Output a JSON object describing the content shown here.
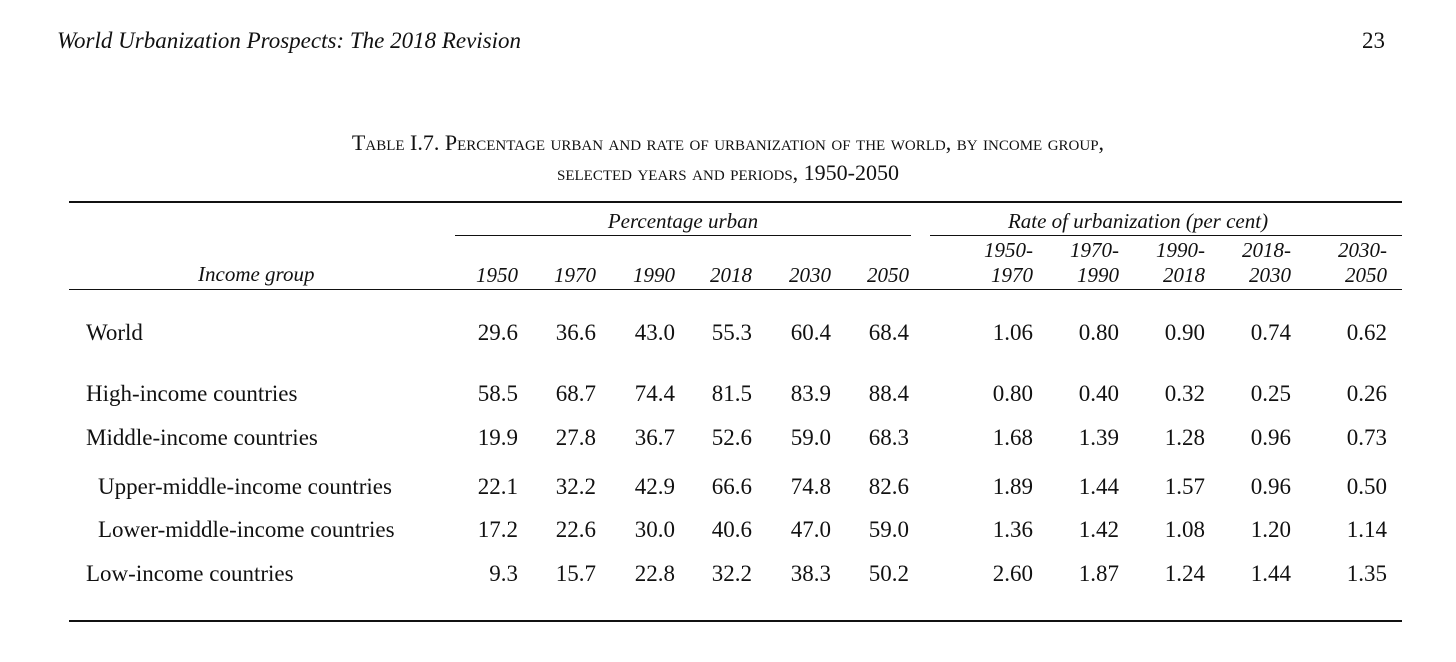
{
  "header": {
    "title": "World Urbanization Prospects: The 2018 Revision",
    "page_number": "23"
  },
  "table": {
    "caption_line1": "Table I.7. Percentage urban and rate of urbanization of the world,  by income group,",
    "caption_line2": "selected years and periods, 1950-2050",
    "group_headers": {
      "percentage_urban": "Percentage urban",
      "rate": "Rate of urbanization (per cent)"
    },
    "row_header": "Income group",
    "columns": [
      {
        "top": "",
        "bottom": "1950"
      },
      {
        "top": "",
        "bottom": "1970"
      },
      {
        "top": "",
        "bottom": "1990"
      },
      {
        "top": "",
        "bottom": "2018"
      },
      {
        "top": "",
        "bottom": "2030"
      },
      {
        "top": "",
        "bottom": "2050"
      },
      {
        "top": "1950-",
        "bottom": "1970"
      },
      {
        "top": "1970-",
        "bottom": "1990"
      },
      {
        "top": "1990-",
        "bottom": "2018"
      },
      {
        "top": "2018-",
        "bottom": "2030"
      },
      {
        "top": "2030-",
        "bottom": "2050"
      }
    ],
    "rows": [
      {
        "label": "World",
        "values": [
          "29.6",
          "36.6",
          "43.0",
          "55.3",
          "60.4",
          "68.4",
          "1.06",
          "0.80",
          "0.90",
          "0.74",
          "0.62"
        ]
      },
      {
        "label": "High-income countries",
        "values": [
          "58.5",
          "68.7",
          "74.4",
          "81.5",
          "83.9",
          "88.4",
          "0.80",
          "0.40",
          "0.32",
          "0.25",
          "0.26"
        ]
      },
      {
        "label": "Middle-income countries",
        "values": [
          "19.9",
          "27.8",
          "36.7",
          "52.6",
          "59.0",
          "68.3",
          "1.68",
          "1.39",
          "1.28",
          "0.96",
          "0.73"
        ]
      },
      {
        "label": "Upper-middle-income countries",
        "values": [
          "22.1",
          "32.2",
          "42.9",
          "66.6",
          "74.8",
          "82.6",
          "1.89",
          "1.44",
          "1.57",
          "0.96",
          "0.50"
        ]
      },
      {
        "label": "Lower-middle-income countries",
        "values": [
          "17.2",
          "22.6",
          "30.0",
          "40.6",
          "47.0",
          "59.0",
          "1.36",
          "1.42",
          "1.08",
          "1.20",
          "1.14"
        ]
      },
      {
        "label": "Low-income countries",
        "values": [
          "9.3",
          "15.7",
          "22.8",
          "32.2",
          "38.3",
          "50.2",
          "2.60",
          "1.87",
          "1.24",
          "1.44",
          "1.35"
        ]
      }
    ]
  }
}
